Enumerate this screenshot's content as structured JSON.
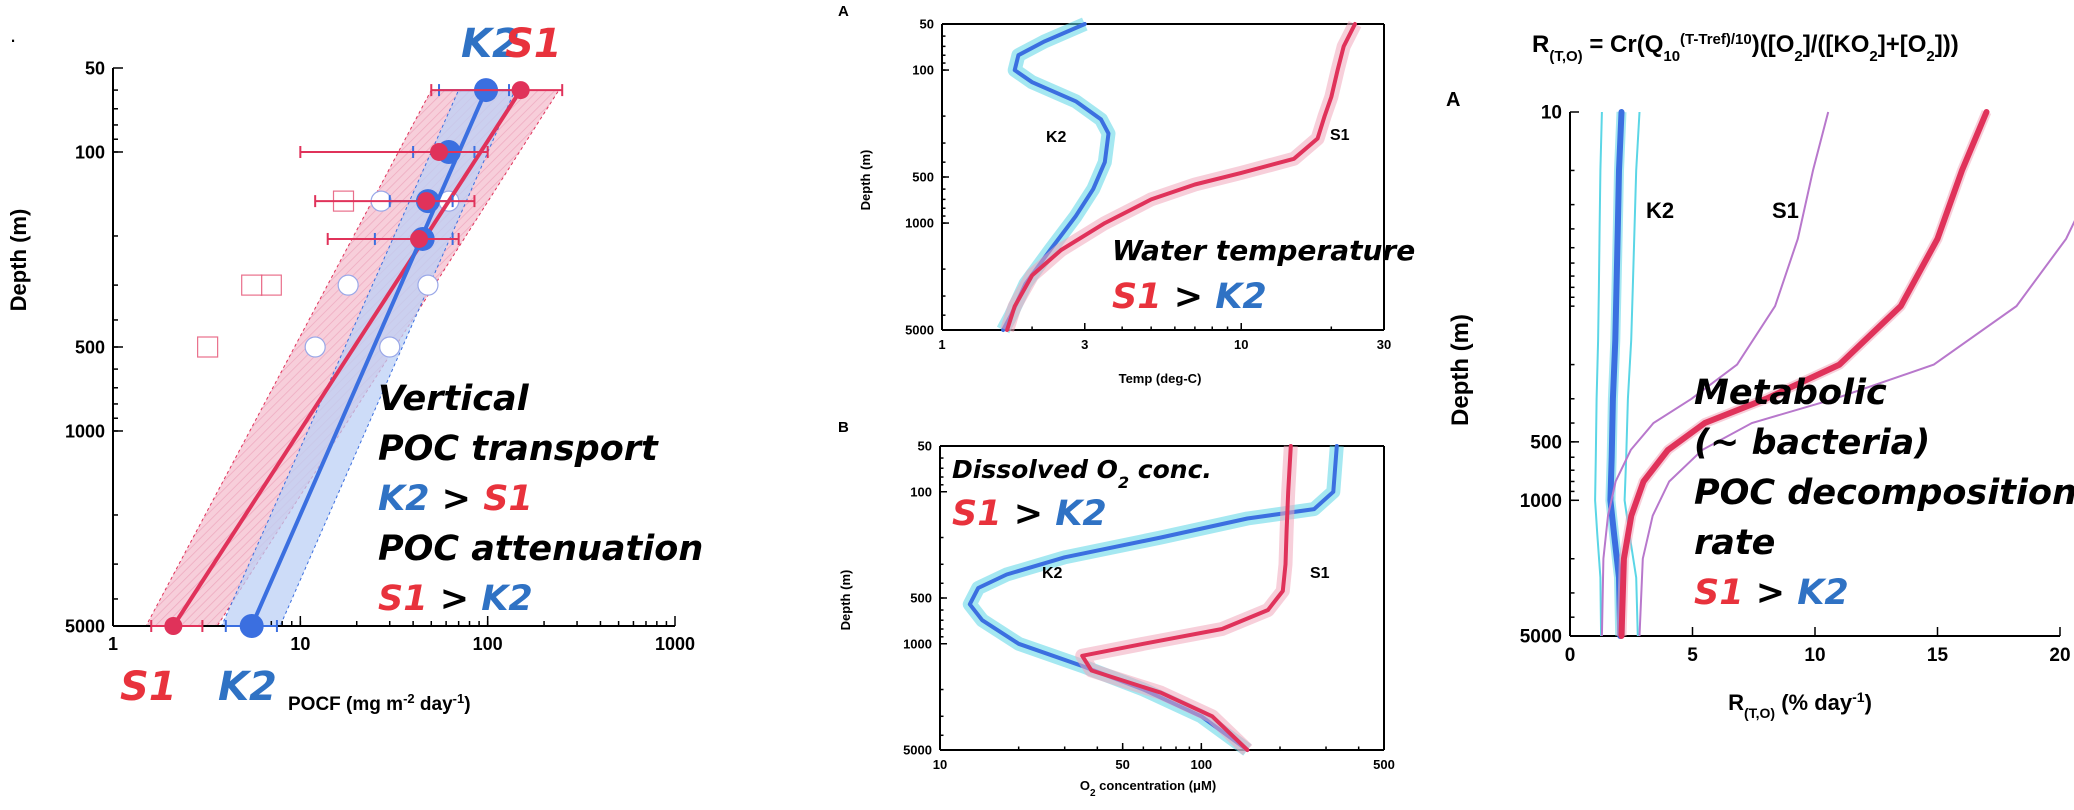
{
  "colors": {
    "red": "#e0325a",
    "blue": "#3b6fe0",
    "cyan": "#5bd6e6",
    "purple": "#b878cc",
    "red_text": "#e8323c",
    "blue_text": "#2f72c4"
  },
  "chart_data": [
    {
      "id": "pocf",
      "type": "scatter",
      "xscale": "log",
      "yscale": "log",
      "yreversed": true,
      "xlim": [
        1,
        1000
      ],
      "ylim": [
        50,
        5000
      ],
      "xlabel": "POCF (mg m",
      "xlabel_sup": "-2",
      "xlabel_mid": " day",
      "xlabel_sup2": "-1",
      "xlabel_end": ")",
      "ylabel": "Depth (m)",
      "xticks": [
        1,
        10,
        100,
        1000
      ],
      "xtick_labels": [
        "1",
        "10",
        "100",
        "1000"
      ],
      "yticks": [
        50,
        100,
        500,
        1000,
        5000
      ],
      "ytick_labels": [
        "50",
        "100",
        "500",
        "1000",
        "5000"
      ],
      "top_labels": [
        "K2",
        "S1"
      ],
      "bottom_labels": [
        "S1",
        "K2"
      ],
      "series": [
        {
          "name": "S1",
          "color": "red",
          "points": [
            {
              "x": 150,
              "y": 60,
              "xerr": [
                50,
                250
              ]
            },
            {
              "x": 55,
              "y": 100,
              "xerr": [
                10,
                100
              ]
            },
            {
              "x": 47,
              "y": 150,
              "xerr": [
                12,
                85
              ]
            },
            {
              "x": 43,
              "y": 205,
              "xerr": [
                14,
                70
              ]
            },
            {
              "x": 2.1,
              "y": 5000,
              "xerr": [
                1.6,
                3
              ]
            }
          ],
          "line": [
            [
              2.1,
              5000
            ],
            [
              150,
              60
            ]
          ],
          "band": [
            [
              1.5,
              5000
            ],
            [
              3.6,
              5000
            ],
            [
              240,
              60
            ],
            [
              50,
              60
            ]
          ]
        },
        {
          "name": "K2",
          "color": "blue",
          "points": [
            {
              "x": 98,
              "y": 60,
              "xerr": [
                55,
                130
              ]
            },
            {
              "x": 62,
              "y": 100,
              "xerr": [
                40,
                85
              ]
            },
            {
              "x": 48,
              "y": 150,
              "xerr": [
                30,
                65
              ]
            },
            {
              "x": 45,
              "y": 205,
              "xerr": [
                25,
                65
              ]
            },
            {
              "x": 5.5,
              "y": 5000,
              "xerr": [
                4,
                7.5
              ]
            }
          ],
          "line": [
            [
              5.5,
              5000
            ],
            [
              98,
              60
            ]
          ],
          "band": [
            [
              3.8,
              5000
            ],
            [
              7.8,
              5000
            ],
            [
              140,
              60
            ],
            [
              70,
              60
            ]
          ]
        }
      ],
      "open_circles": [
        {
          "x": 27,
          "y": 150
        },
        {
          "x": 62,
          "y": 150
        },
        {
          "x": 18,
          "y": 300
        },
        {
          "x": 48,
          "y": 300
        },
        {
          "x": 12,
          "y": 500
        },
        {
          "x": 30,
          "y": 500
        }
      ],
      "open_squares": [
        {
          "x": 17,
          "y": 150
        },
        {
          "x": 7,
          "y": 300
        },
        {
          "x": 5.5,
          "y": 300
        },
        {
          "x": 3.2,
          "y": 500
        }
      ]
    },
    {
      "id": "temp",
      "type": "line",
      "panel_label": "A",
      "xscale": "log",
      "yscale": "log",
      "yreversed": true,
      "xlim": [
        1,
        30
      ],
      "ylim": [
        50,
        5000
      ],
      "xlabel": "Temp (deg-C)",
      "ylabel": "Depth (m)",
      "xticks": [
        1,
        3,
        10,
        30
      ],
      "xtick_labels": [
        "1",
        "3",
        "10",
        "30"
      ],
      "yticks": [
        50,
        100,
        500,
        1000,
        5000
      ],
      "ytick_labels": [
        "50",
        "100",
        "500",
        "1000",
        "5000"
      ],
      "series": [
        {
          "name": "K2",
          "color": "blue",
          "points": [
            [
              3.0,
              50
            ],
            [
              2.2,
              65
            ],
            [
              1.8,
              80
            ],
            [
              1.75,
              100
            ],
            [
              2.0,
              120
            ],
            [
              2.8,
              160
            ],
            [
              3.4,
              210
            ],
            [
              3.6,
              260
            ],
            [
              3.5,
              400
            ],
            [
              3.2,
              600
            ],
            [
              2.8,
              900
            ],
            [
              2.3,
              1500
            ],
            [
              1.9,
              2500
            ],
            [
              1.7,
              4000
            ],
            [
              1.6,
              5000
            ]
          ]
        },
        {
          "name": "S1",
          "color": "red",
          "points": [
            [
              24,
              50
            ],
            [
              22,
              70
            ],
            [
              21,
              100
            ],
            [
              20,
              150
            ],
            [
              19,
              200
            ],
            [
              18,
              280
            ],
            [
              15,
              380
            ],
            [
              10,
              470
            ],
            [
              7,
              560
            ],
            [
              5,
              700
            ],
            [
              3.5,
              1000
            ],
            [
              2.5,
              1500
            ],
            [
              2.0,
              2200
            ],
            [
              1.75,
              3500
            ],
            [
              1.65,
              5000
            ]
          ]
        }
      ]
    },
    {
      "id": "o2",
      "type": "line",
      "panel_label": "B",
      "xscale": "log",
      "yscale": "log",
      "yreversed": true,
      "xlim": [
        10,
        500
      ],
      "ylim": [
        50,
        5000
      ],
      "xlabel": "O",
      "xlabel_sub": "2",
      "xlabel_end": " concentration (μM)",
      "ylabel": "Depth (m)",
      "xticks": [
        10,
        50,
        100,
        500
      ],
      "xtick_labels": [
        "10",
        "50",
        "100",
        "500"
      ],
      "yticks": [
        50,
        100,
        500,
        1000,
        5000
      ],
      "ytick_labels": [
        "50",
        "100",
        "500",
        "1000",
        "5000"
      ],
      "series": [
        {
          "name": "K2",
          "color": "blue",
          "points": [
            [
              330,
              50
            ],
            [
              320,
              100
            ],
            [
              270,
              130
            ],
            [
              150,
              150
            ],
            [
              70,
              200
            ],
            [
              30,
              270
            ],
            [
              18,
              350
            ],
            [
              14,
              430
            ],
            [
              13,
              550
            ],
            [
              14.5,
              700
            ],
            [
              20,
              1000
            ],
            [
              35,
              1400
            ],
            [
              60,
              2000
            ],
            [
              100,
              3000
            ],
            [
              150,
              5000
            ]
          ]
        },
        {
          "name": "S1",
          "color": "red",
          "points": [
            [
              220,
              50
            ],
            [
              215,
              100
            ],
            [
              212,
              180
            ],
            [
              210,
              300
            ],
            [
              205,
              450
            ],
            [
              180,
              600
            ],
            [
              120,
              800
            ],
            [
              60,
              1000
            ],
            [
              35,
              1200
            ],
            [
              38,
              1500
            ],
            [
              70,
              2100
            ],
            [
              110,
              3000
            ],
            [
              150,
              5000
            ]
          ]
        }
      ]
    },
    {
      "id": "rate",
      "type": "line",
      "panel_label": "A",
      "title_parts": {
        "r": "R",
        "r_sub": "(T,O)",
        "eq": " = Cr(Q",
        "q_sub": "10",
        "exp": "(T-Tref)/10",
        "rest": ")([O",
        "o2_sub": "2",
        "mid": "]/([KO",
        "ko2_sub": "2",
        "mid2": "]+[O",
        "o2b_sub": "2",
        "end": "]))"
      },
      "xscale": "linear",
      "yscale": "log",
      "yreversed": true,
      "xlim": [
        0,
        20
      ],
      "ylim": [
        10,
        5000
      ],
      "xlabel": "R",
      "xlabel_sub": "(T,O)",
      "xlabel_end": " (% day",
      "xlabel_sup": "-1",
      "xlabel_close": ")",
      "ylabel": "Depth (m)",
      "xticks": [
        0,
        5,
        10,
        15,
        20
      ],
      "xtick_labels": [
        "0",
        "5",
        "10",
        "15",
        "20"
      ],
      "yticks": [
        10,
        500,
        1000,
        5000
      ],
      "ytick_labels": [
        "10",
        "500",
        "1000",
        "5000"
      ],
      "series": [
        {
          "name": "K2",
          "color": "blue",
          "points": [
            [
              2.1,
              10
            ],
            [
              2.0,
              20
            ],
            [
              1.95,
              40
            ],
            [
              1.9,
              80
            ],
            [
              1.85,
              150
            ],
            [
              1.75,
              300
            ],
            [
              1.7,
              600
            ],
            [
              1.65,
              1000
            ],
            [
              1.8,
              1500
            ],
            [
              2.0,
              2500
            ],
            [
              2.05,
              5000
            ]
          ]
        },
        {
          "name": "S1",
          "color": "red",
          "points": [
            [
              17,
              10
            ],
            [
              16,
              20
            ],
            [
              15,
              45
            ],
            [
              13.5,
              100
            ],
            [
              11,
              200
            ],
            [
              8,
              300
            ],
            [
              5.5,
              400
            ],
            [
              4,
              550
            ],
            [
              3,
              800
            ],
            [
              2.5,
              1200
            ],
            [
              2.2,
              2000
            ],
            [
              2.1,
              5000
            ]
          ]
        }
      ]
    }
  ],
  "annotations": {
    "vertical": "Vertical",
    "poc_transport": "POC transport",
    "k2": "K2",
    "gt": ">",
    "s1": "S1",
    "poc_attenuation": "POC attenuation",
    "water_temperature": "Water temperature",
    "dissolved": "Dissolved O",
    "dissolved_sub": "2",
    "dissolved_end": " conc.",
    "metabolic": "Metabolic",
    "bacteria": "(~ bacteria)",
    "poc_decomposition": "POC decomposition",
    "rate": "rate",
    "corner_mark": "."
  }
}
